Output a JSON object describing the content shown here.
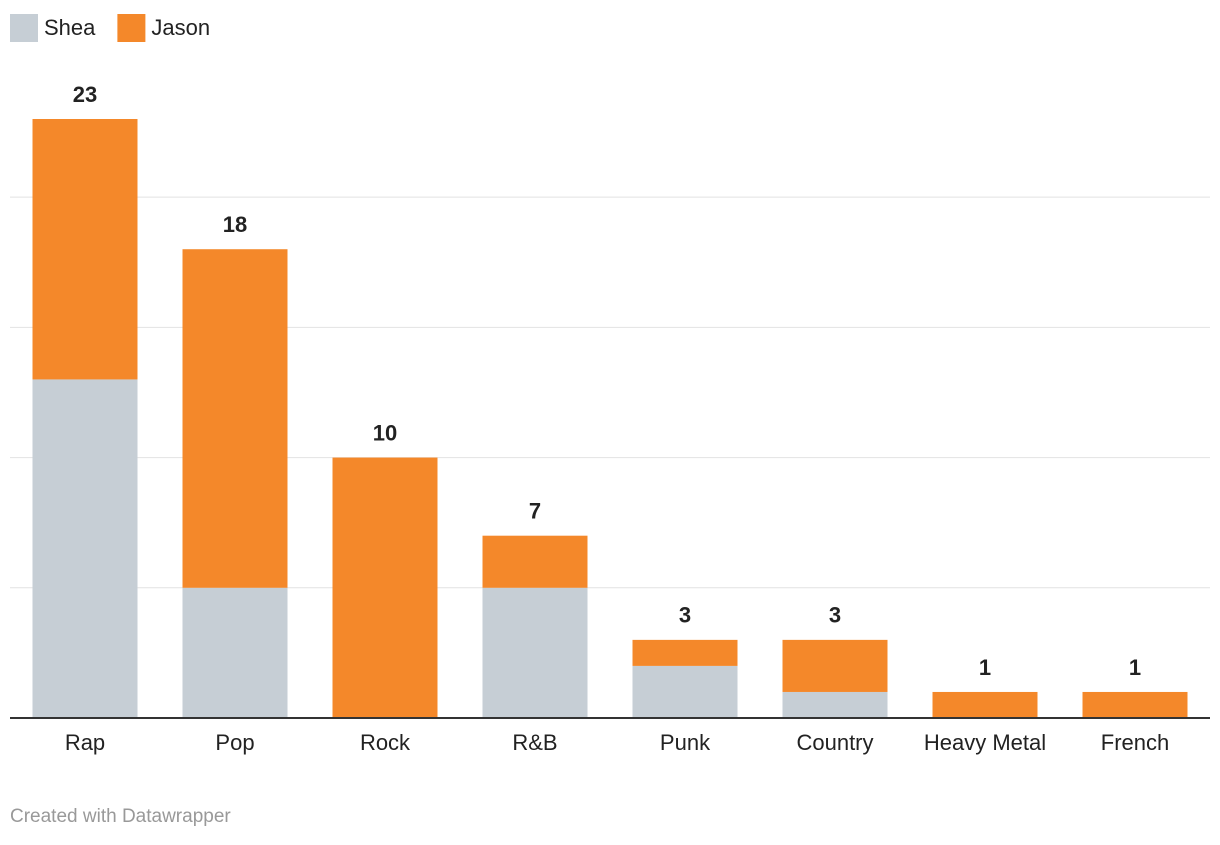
{
  "chart_data": {
    "type": "stacked_bar",
    "categories": [
      "Rap",
      "Pop",
      "Rock",
      "R&B",
      "Punk",
      "Country",
      "Heavy Metal",
      "French"
    ],
    "series": [
      {
        "name": "Shea",
        "color": "#c6ced5",
        "values": [
          13,
          5,
          0,
          5,
          2,
          1,
          0,
          0
        ]
      },
      {
        "name": "Jason",
        "color": "#f4882a",
        "values": [
          10,
          13,
          10,
          2,
          1,
          2,
          1,
          1
        ]
      }
    ],
    "totals": [
      23,
      18,
      10,
      7,
      3,
      3,
      1,
      1
    ],
    "ylim": [
      0,
      23
    ],
    "yticks": [
      0,
      5,
      10,
      15,
      20
    ],
    "grid": true,
    "footer": "Created with Datawrapper"
  }
}
